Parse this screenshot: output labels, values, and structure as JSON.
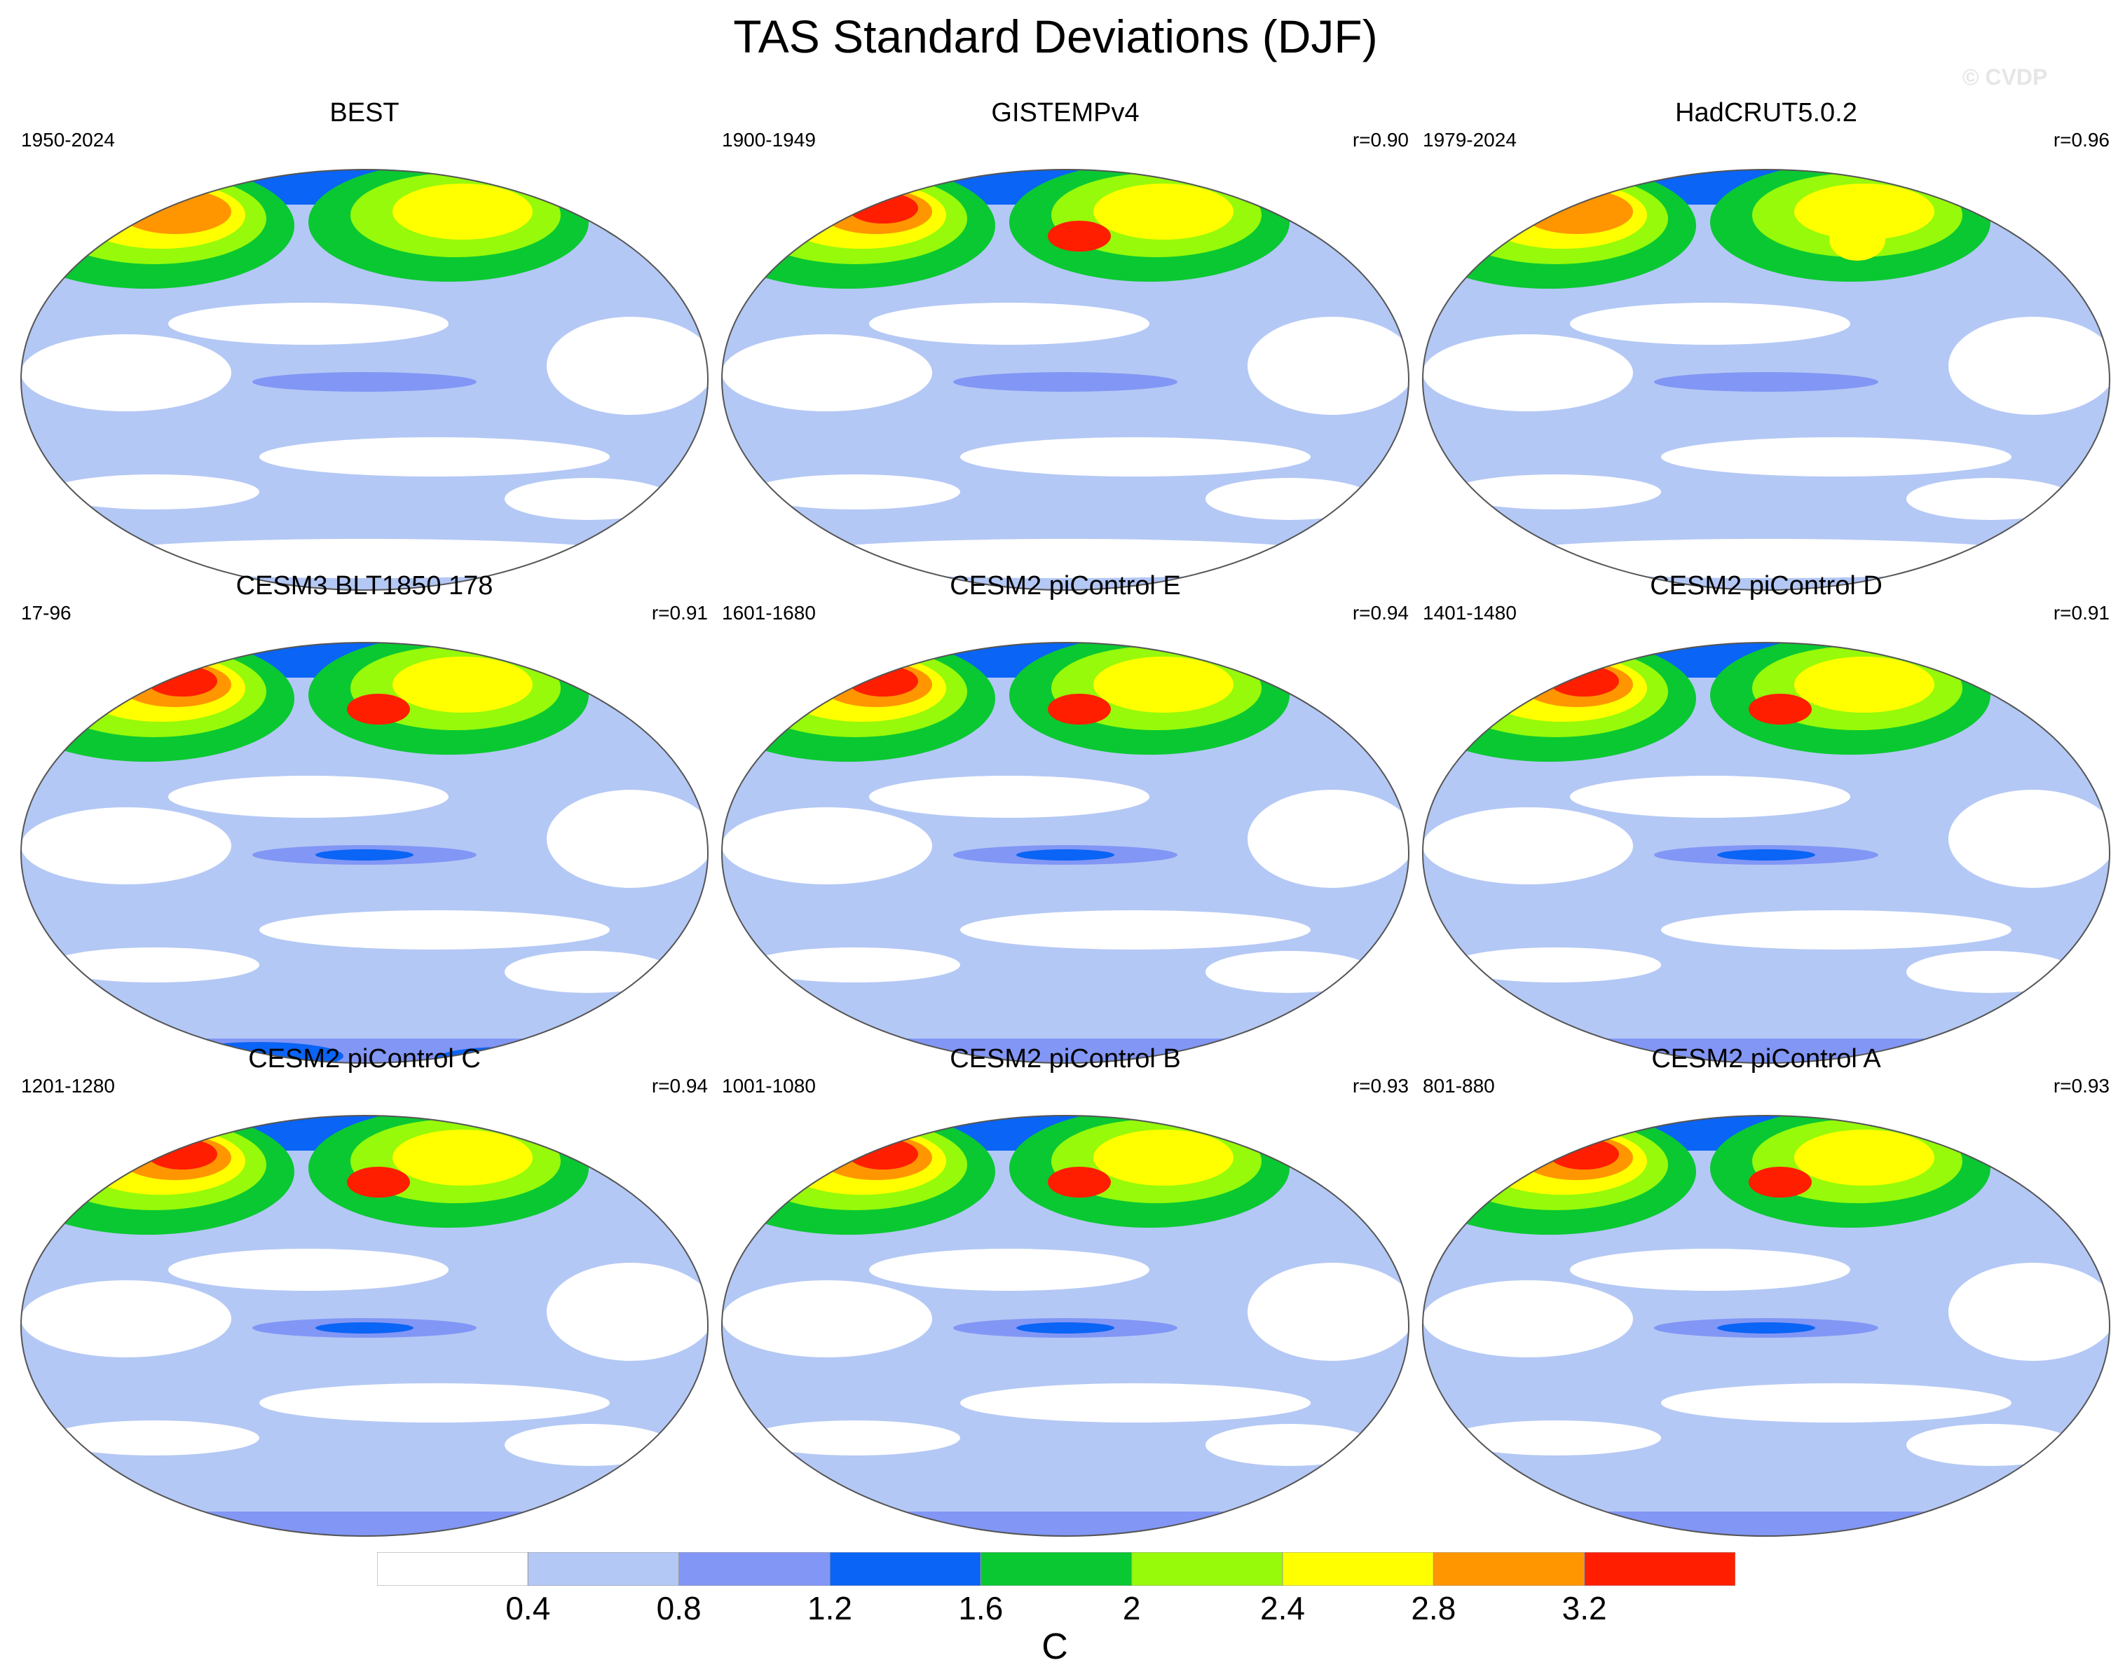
{
  "title": "TAS Standard Deviations (DJF)",
  "watermark": "© CVDP",
  "panels": [
    {
      "title": "BEST",
      "period": "1950-2024",
      "corr": "",
      "pattern": "obs_a"
    },
    {
      "title": "GISTEMPv4",
      "period": "1900-1949",
      "corr": "r=0.90",
      "pattern": "obs_b"
    },
    {
      "title": "HadCRUT5.0.2",
      "period": "1979-2024",
      "corr": "r=0.96",
      "pattern": "obs_c"
    },
    {
      "title": "CESM3 BLT1850 178",
      "period": "17-96",
      "corr": "r=0.91",
      "pattern": "model_strong"
    },
    {
      "title": "CESM2 piControl E",
      "period": "1601-1680",
      "corr": "r=0.94",
      "pattern": "model"
    },
    {
      "title": "CESM2 piControl D",
      "period": "1401-1480",
      "corr": "r=0.91",
      "pattern": "model"
    },
    {
      "title": "CESM2 piControl C",
      "period": "1201-1280",
      "corr": "r=0.94",
      "pattern": "model"
    },
    {
      "title": "CESM2 piControl B",
      "period": "1001-1080",
      "corr": "r=0.93",
      "pattern": "model"
    },
    {
      "title": "CESM2 piControl A",
      "period": "801-880",
      "corr": "r=0.93",
      "pattern": "model"
    }
  ],
  "colorbar": {
    "labels": [
      "0.4",
      "0.8",
      "1.2",
      "1.6",
      "2",
      "2.4",
      "2.8",
      "3.2"
    ],
    "colors": [
      "#ffffff",
      "#b4c8f5",
      "#8296f5",
      "#0a64f5",
      "#0ac832",
      "#96fa0a",
      "#ffff00",
      "#ff9600",
      "#ff1e00"
    ],
    "units": "C"
  }
}
